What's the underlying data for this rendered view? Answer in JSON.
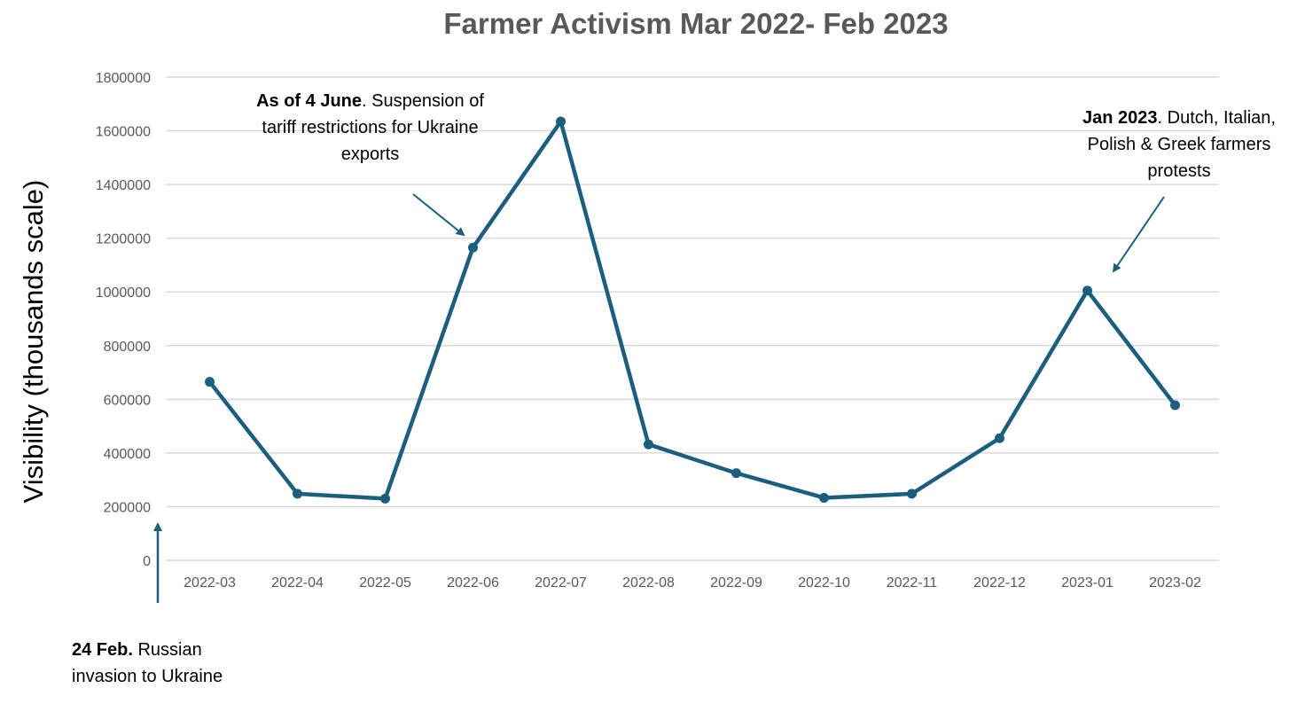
{
  "colors": {
    "line": "#1b5e7e",
    "grid": "#d9d9d9",
    "text": "#595959"
  },
  "chart_data": {
    "type": "line",
    "title": "Farmer Activism Mar 2022- Feb 2023",
    "ylabel": "Visibility (thousands scale)",
    "xlabel": "",
    "ylim": [
      0,
      1800000
    ],
    "yticks": [
      0,
      200000,
      400000,
      600000,
      800000,
      1000000,
      1200000,
      1400000,
      1600000,
      1800000
    ],
    "categories": [
      "2022-03",
      "2022-04",
      "2022-05",
      "2022-06",
      "2022-07",
      "2022-08",
      "2022-09",
      "2022-10",
      "2022-11",
      "2022-12",
      "2023-01",
      "2023-02"
    ],
    "series": [
      {
        "values": [
          665000,
          248000,
          230000,
          1165000,
          1635000,
          432000,
          325000,
          233000,
          248000,
          455000,
          1005000,
          578000
        ]
      }
    ],
    "grid": "horizontal",
    "legend": "none",
    "annotations": [
      {
        "bold": "As of 4 June",
        "text": ". Suspension of tariff restrictions for Ukraine exports",
        "target": "2022-06"
      },
      {
        "bold": "Jan 2023",
        "text": ". Dutch, Italian, Polish & Greek farmers protests",
        "target": "2023-01"
      },
      {
        "bold": "24 Feb.",
        "text": " Russian invasion to Ukraine",
        "target": "before 2022-03"
      }
    ]
  }
}
